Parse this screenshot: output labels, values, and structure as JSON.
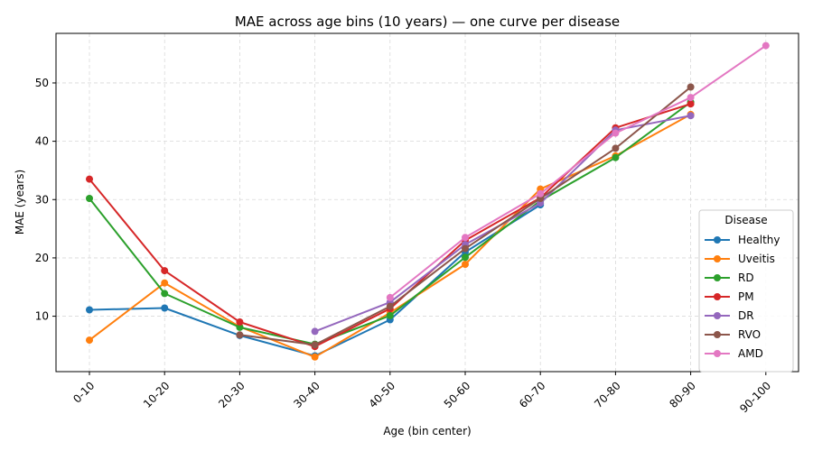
{
  "chart_data": {
    "type": "line",
    "title": "MAE across age bins (10 years) — one curve per disease",
    "xlabel": "Age (bin center)",
    "ylabel": "MAE (years)",
    "categories": [
      "0-10",
      "10-20",
      "20-30",
      "30-40",
      "40-50",
      "50-60",
      "60-70",
      "70-80",
      "80-90",
      "90-100"
    ],
    "y_ticks": [
      10,
      20,
      30,
      40,
      50
    ],
    "ylim": [
      0.5,
      58.5
    ],
    "grid": true,
    "legend": {
      "title": "Disease",
      "placement": "lower-right"
    },
    "series": [
      {
        "name": "Healthy",
        "color": "#1f77b4",
        "values": [
          11.1,
          11.4,
          6.7,
          3.2,
          9.4,
          21.0,
          29.1,
          null,
          null,
          null
        ]
      },
      {
        "name": "Uveitis",
        "color": "#ff7f0e",
        "values": [
          5.9,
          15.7,
          8.2,
          3.0,
          10.6,
          18.9,
          31.8,
          37.5,
          44.6,
          null
        ]
      },
      {
        "name": "RD",
        "color": "#2ca02c",
        "values": [
          30.2,
          13.9,
          8.1,
          5.2,
          10.1,
          20.1,
          29.8,
          37.2,
          46.7,
          null
        ]
      },
      {
        "name": "PM",
        "color": "#d62728",
        "values": [
          33.5,
          17.8,
          9.0,
          4.8,
          11.3,
          23.0,
          30.3,
          42.3,
          46.4,
          null
        ]
      },
      {
        "name": "DR",
        "color": "#9467bd",
        "values": [
          null,
          null,
          null,
          7.4,
          12.4,
          22.3,
          29.4,
          41.9,
          44.4,
          null
        ]
      },
      {
        "name": "RVO",
        "color": "#8c564b",
        "values": [
          null,
          null,
          6.8,
          5.1,
          11.7,
          21.6,
          30.2,
          38.8,
          49.3,
          null
        ]
      },
      {
        "name": "AMD",
        "color": "#e377c2",
        "values": [
          null,
          null,
          null,
          null,
          13.2,
          23.5,
          31.0,
          41.4,
          47.5,
          56.4
        ]
      }
    ]
  }
}
